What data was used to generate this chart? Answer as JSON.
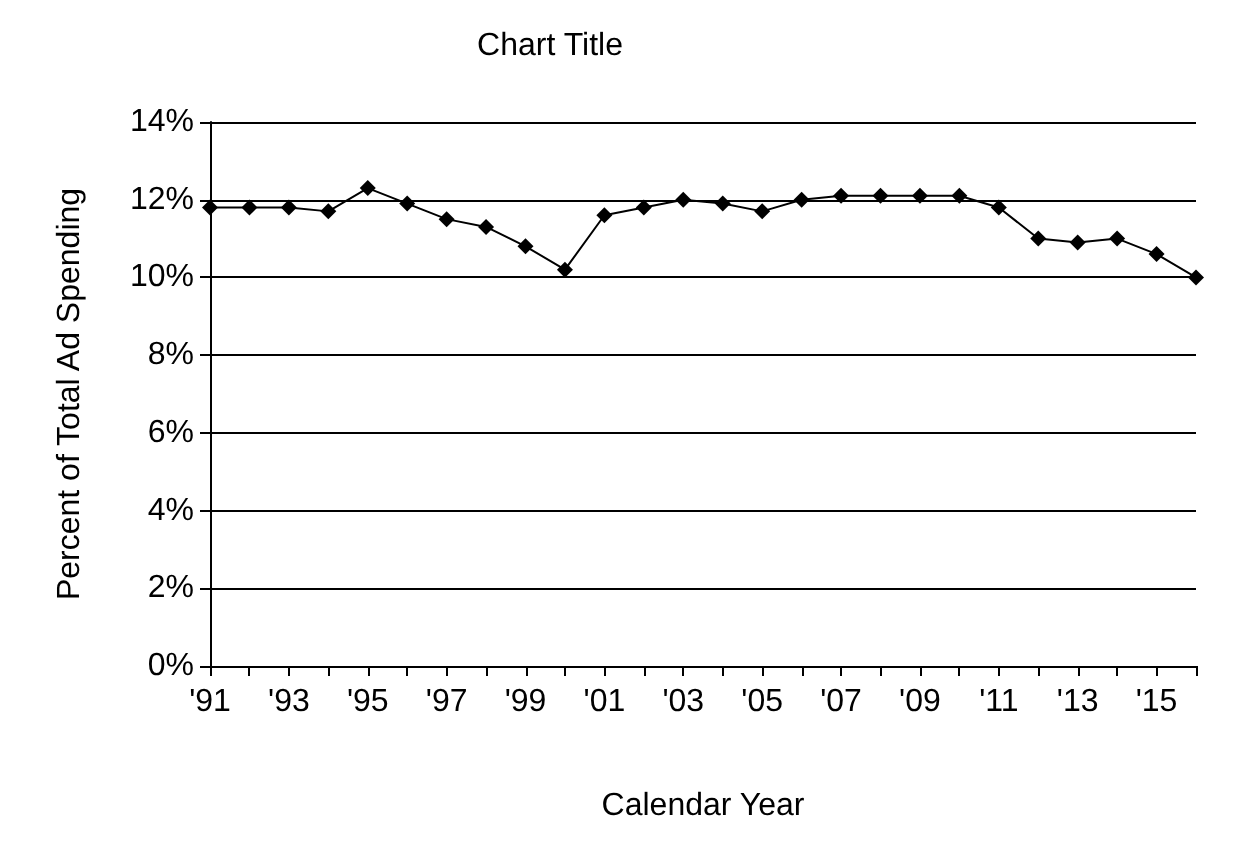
{
  "chart_data": {
    "type": "line",
    "title": "Chart Title",
    "xlabel": "Calendar Year",
    "ylabel": "Percent of Total Ad Spending",
    "categories": [
      "'91",
      null,
      "'93",
      null,
      "'95",
      null,
      "'97",
      null,
      "'99",
      null,
      "'01",
      null,
      "'03",
      null,
      "'05",
      null,
      "'07",
      null,
      "'09",
      null,
      "'11",
      null,
      "'13",
      null,
      "'15",
      null
    ],
    "series": [
      {
        "color": "#000000",
        "values": [
          11.8,
          11.8,
          11.8,
          11.7,
          12.3,
          11.9,
          11.5,
          11.3,
          10.8,
          10.2,
          11.6,
          11.8,
          12.0,
          11.9,
          11.7,
          12.0,
          12.1,
          12.1,
          12.1,
          12.1,
          11.8,
          11.0,
          10.9,
          11.0,
          10.6,
          10.0
        ]
      }
    ],
    "ylim": [
      0,
      14
    ],
    "yticks": [
      {
        "value": 0,
        "label": "0%"
      },
      {
        "value": 2,
        "label": "2%"
      },
      {
        "value": 4,
        "label": "4%"
      },
      {
        "value": 6,
        "label": "6%"
      },
      {
        "value": 8,
        "label": "8%"
      },
      {
        "value": 10,
        "label": "10%"
      },
      {
        "value": 12,
        "label": "12%"
      },
      {
        "value": 14,
        "label": "14%"
      }
    ],
    "grid": "y",
    "marker": "diamond",
    "line_style": "solid"
  }
}
